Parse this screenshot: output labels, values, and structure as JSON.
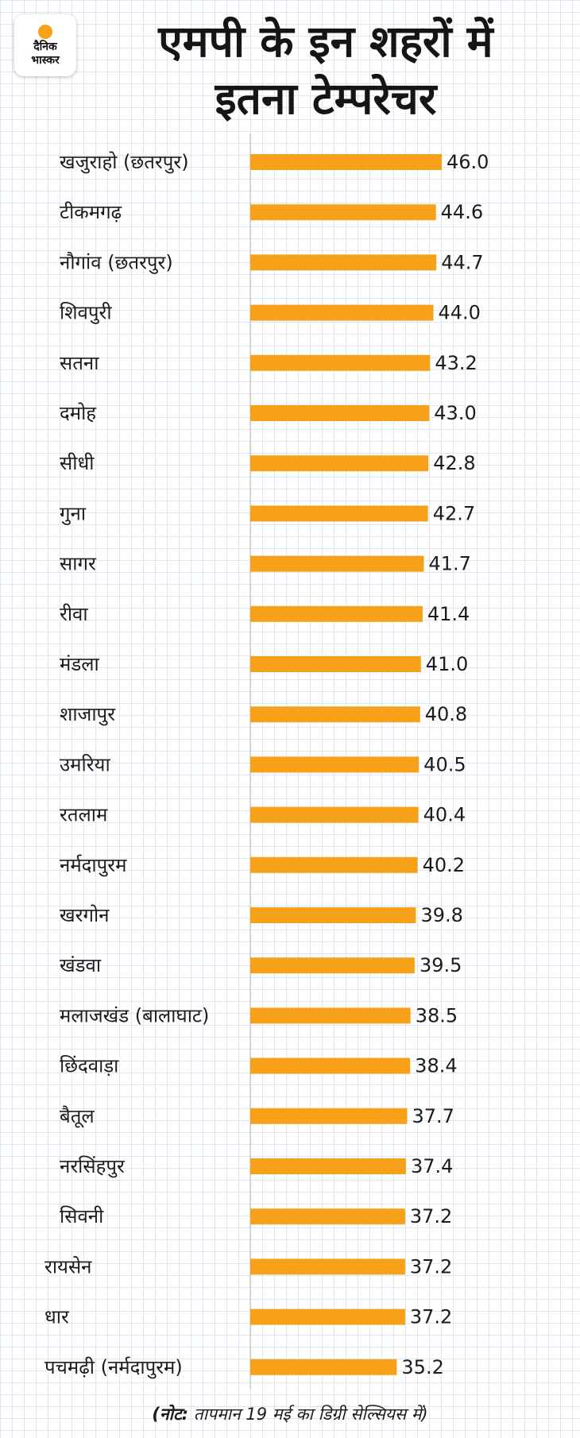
{
  "brand": {
    "logo_line1": "दैनिक",
    "logo_line2": "भास्कर",
    "accent_color": "#f7a11a"
  },
  "title_lines": [
    "एमपी के इन शहरों में",
    "इतना टेम्परेचर"
  ],
  "chart_data": {
    "type": "bar",
    "orientation": "horizontal",
    "title": "एमपी के इन शहरों में इतना टेम्परेचर",
    "xlabel": "",
    "ylabel": "",
    "bar_color": "#f7a11a",
    "xlim": [
      0,
      46
    ],
    "grid": false,
    "categories": [
      "खजुराहो (छतरपुर)",
      "टीकमगढ़",
      "नौगांव (छतरपुर)",
      "शिवपुरी",
      "सतना",
      "दमोह",
      "सीधी",
      "गुना",
      "सागर",
      "रीवा",
      "मंडला",
      "शाजापुर",
      "उमरिया",
      "रतलाम",
      "नर्मदापुरम",
      "खरगोन",
      "खंडवा",
      "मलाजखंड (बालाघाट)",
      "छिंदवाड़ा",
      "बैतूल",
      "नरसिंहपुर",
      "सिवनी",
      "रायसेन",
      "धार",
      "पचमढ़ी (नर्मदापुरम)"
    ],
    "values": [
      46.0,
      44.6,
      44.7,
      44.0,
      43.2,
      43.0,
      42.8,
      42.7,
      41.7,
      41.4,
      41.0,
      40.8,
      40.5,
      40.4,
      40.2,
      39.8,
      39.5,
      38.5,
      38.4,
      37.7,
      37.4,
      37.2,
      37.2,
      37.2,
      35.2
    ],
    "value_labels": [
      "46.0",
      "44.6",
      "44.7",
      "44.0",
      "43.2",
      "43.0",
      "42.8",
      "42.7",
      "41.7",
      "41.4",
      "41.0",
      "40.8",
      "40.5",
      "40.4",
      "40.2",
      "39.8",
      "39.5",
      "38.5",
      "38.4",
      "37.7",
      "37.4",
      "37.2",
      "37.2",
      "37.2",
      "35.2"
    ]
  },
  "note": {
    "prefix": "(नोट:",
    "text": " तापमान 19 मई का डिग्री सेल्सियस में)"
  }
}
